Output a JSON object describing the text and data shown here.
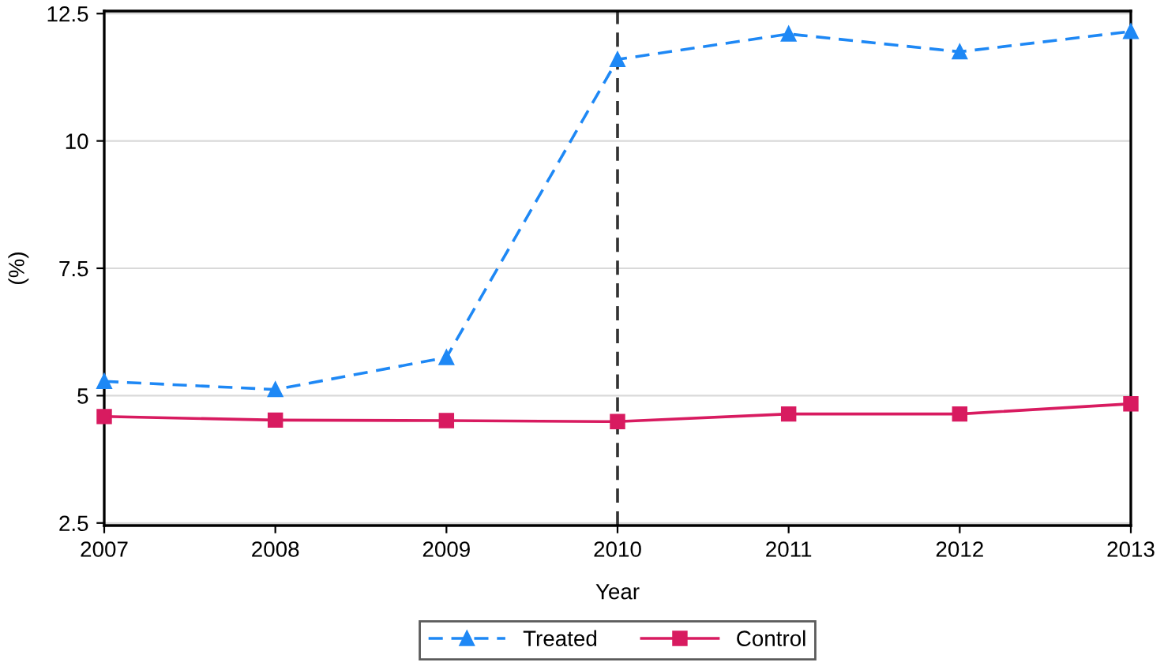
{
  "chart_data": {
    "type": "line",
    "xlabel": "Year",
    "ylabel": "(%)",
    "x": [
      2007,
      2008,
      2009,
      2010,
      2011,
      2012,
      2013
    ],
    "series": [
      {
        "name": "Treated",
        "color": "#1e88f5",
        "values": [
          5.28,
          5.12,
          5.75,
          11.6,
          12.1,
          11.75,
          12.15
        ],
        "marker": "triangle",
        "line_style": "dashed"
      },
      {
        "name": "Control",
        "color": "#d81b60",
        "values": [
          4.59,
          4.52,
          4.51,
          4.49,
          4.64,
          4.64,
          4.84
        ],
        "marker": "square",
        "line_style": "solid"
      }
    ],
    "xlim": [
      2007,
      2013
    ],
    "xticks": [
      2007,
      2008,
      2009,
      2010,
      2011,
      2012,
      2013
    ],
    "ylim": [
      2.45,
      12.55
    ],
    "yticks": [
      2.5,
      5,
      7.5,
      10,
      12.5
    ],
    "ref_lines": [
      {
        "axis": "x",
        "value": 2010,
        "label": null,
        "color": "#333333",
        "line_style": "dashed"
      }
    ],
    "grid": "y",
    "legend": "bottom"
  }
}
